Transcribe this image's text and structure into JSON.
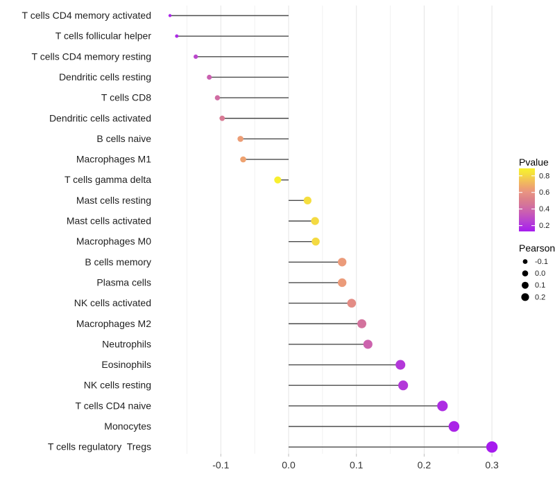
{
  "figure": {
    "background": "#ffffff",
    "stem_color": "#4a4a4a",
    "grid_major_color": "#e4e4e4",
    "grid_minor_color": "#f2f2f2",
    "axis_tick_color": "#bebebe"
  },
  "chart_data": {
    "type": "lollipop",
    "orientation": "horizontal",
    "title": "",
    "xlabel": "",
    "ylabel": "",
    "x_axis": {
      "range": [
        -0.185,
        0.315
      ],
      "major_ticks": [
        -0.1,
        0.0,
        0.1,
        0.2,
        0.3
      ],
      "major_tick_labels": [
        "-0.1",
        "0.0",
        "0.1",
        "0.2",
        "0.3"
      ],
      "minor_ticks": [
        -0.15,
        -0.05,
        0.05,
        0.15,
        0.25
      ],
      "grid": true,
      "baseline": 0.0
    },
    "points": [
      {
        "label": "T cells CD4 memory activated",
        "pearson": -0.175,
        "pvalue": 0.15
      },
      {
        "label": "T cells follicular helper",
        "pearson": -0.165,
        "pvalue": 0.17
      },
      {
        "label": "T cells CD4 memory resting",
        "pearson": -0.137,
        "pvalue": 0.27
      },
      {
        "label": "Dendritic cells resting",
        "pearson": -0.117,
        "pvalue": 0.37
      },
      {
        "label": "T cells CD8",
        "pearson": -0.105,
        "pvalue": 0.42
      },
      {
        "label": "Dendritic cells activated",
        "pearson": -0.098,
        "pvalue": 0.48
      },
      {
        "label": "B cells naive",
        "pearson": -0.071,
        "pvalue": 0.64
      },
      {
        "label": "Macrophages M1",
        "pearson": -0.067,
        "pvalue": 0.66
      },
      {
        "label": "T cells gamma delta",
        "pearson": -0.016,
        "pvalue": 0.88
      },
      {
        "label": "Mast cells resting",
        "pearson": 0.028,
        "pvalue": 0.82
      },
      {
        "label": "Mast cells activated",
        "pearson": 0.039,
        "pvalue": 0.81
      },
      {
        "label": "Macrophages M0",
        "pearson": 0.04,
        "pvalue": 0.81
      },
      {
        "label": "B cells memory",
        "pearson": 0.079,
        "pvalue": 0.63
      },
      {
        "label": "Plasma cells",
        "pearson": 0.079,
        "pvalue": 0.63
      },
      {
        "label": "NK cells activated",
        "pearson": 0.093,
        "pvalue": 0.57
      },
      {
        "label": "Macrophages M2",
        "pearson": 0.108,
        "pvalue": 0.44
      },
      {
        "label": "Neutrophils",
        "pearson": 0.117,
        "pvalue": 0.38
      },
      {
        "label": "Eosinophils",
        "pearson": 0.165,
        "pvalue": 0.22
      },
      {
        "label": "NK cells resting",
        "pearson": 0.169,
        "pvalue": 0.22
      },
      {
        "label": "T cells CD4 naive",
        "pearson": 0.227,
        "pvalue": 0.18
      },
      {
        "label": "Monocytes",
        "pearson": 0.244,
        "pvalue": 0.16
      },
      {
        "label": "T cells regulatory  Tregs",
        "pearson": 0.3,
        "pvalue": 0.13
      }
    ],
    "color_legend": {
      "title": "Pvalue",
      "tick_values": [
        0.8,
        0.6,
        0.4,
        0.2
      ],
      "tick_labels": [
        "0.8",
        "0.6",
        "0.4",
        "0.2"
      ],
      "domain": [
        0.13,
        0.89
      ],
      "gradient": [
        {
          "t": 0.0,
          "color": "#A61CEE"
        },
        {
          "t": 0.15,
          "color": "#B640D4"
        },
        {
          "t": 0.3,
          "color": "#C95DB3"
        },
        {
          "t": 0.42,
          "color": "#D4749B"
        },
        {
          "t": 0.52,
          "color": "#DD8289"
        },
        {
          "t": 0.62,
          "color": "#E89383"
        },
        {
          "t": 0.7,
          "color": "#EEA36F"
        },
        {
          "t": 0.82,
          "color": "#F2C455"
        },
        {
          "t": 0.92,
          "color": "#F5E23C"
        },
        {
          "t": 1.0,
          "color": "#F8F12D"
        }
      ]
    },
    "size_legend": {
      "title": "Pearson",
      "labels": [
        "-0.1",
        "0.0",
        "0.1",
        "0.2"
      ],
      "values": [
        -0.1,
        0.0,
        0.1,
        0.2
      ],
      "radii": [
        3.4,
        4.3,
        5.0,
        5.6
      ],
      "dot_color": "#000000"
    },
    "size_scale": {
      "domain": [
        -0.175,
        0.3
      ],
      "radius_range": [
        2.2,
        8.2
      ]
    }
  }
}
